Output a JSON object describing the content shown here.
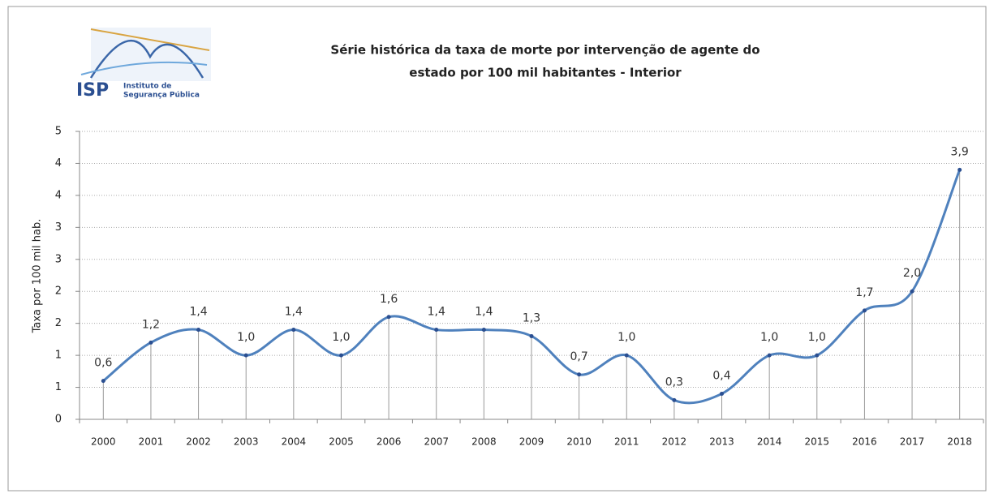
{
  "logo": {
    "acronym": "ISP",
    "line1": "Instituto de",
    "line2": "Segurança Pública"
  },
  "chart_data": {
    "type": "line",
    "title": [
      "Série histórica da taxa de morte por intervenção de agente do",
      "estado por 100 mil habitantes - Interior"
    ],
    "y_label": "Taxa por 100 mil hab.",
    "categories": [
      "2000",
      "2001",
      "2002",
      "2003",
      "2004",
      "2005",
      "2006",
      "2007",
      "2008",
      "2009",
      "2010",
      "2011",
      "2012",
      "2013",
      "2014",
      "2015",
      "2016",
      "2017",
      "2018"
    ],
    "series": [
      {
        "name": "Interior",
        "color": "#4f81bd",
        "values": [
          0.6,
          1.2,
          1.4,
          1.0,
          1.4,
          1.0,
          1.6,
          1.4,
          1.4,
          1.3,
          0.7,
          1.0,
          0.3,
          0.4,
          1.0,
          1.0,
          1.7,
          2.0,
          3.9
        ],
        "value_labels": [
          "0,6",
          "1,2",
          "1,4",
          "1,0",
          "1,4",
          "1,0",
          "1,6",
          "1,4",
          "1,4",
          "1,3",
          "0,7",
          "1,0",
          "0,3",
          "0,4",
          "1,0",
          "1,0",
          "1,7",
          "2,0",
          "3,9"
        ]
      }
    ],
    "ylim": [
      0,
      4.5
    ],
    "yticks": [
      0,
      {
        "value": 0.5,
        "label": "1"
      },
      1,
      {
        "value": 1.5,
        "label": "2"
      },
      2,
      {
        "value": 2.5,
        "label": "3"
      },
      3,
      {
        "value": 3.5,
        "label": "4"
      },
      4,
      {
        "value": 4.5,
        "label": "5"
      }
    ],
    "grid": true,
    "smooth": true,
    "drop_lines": true
  }
}
